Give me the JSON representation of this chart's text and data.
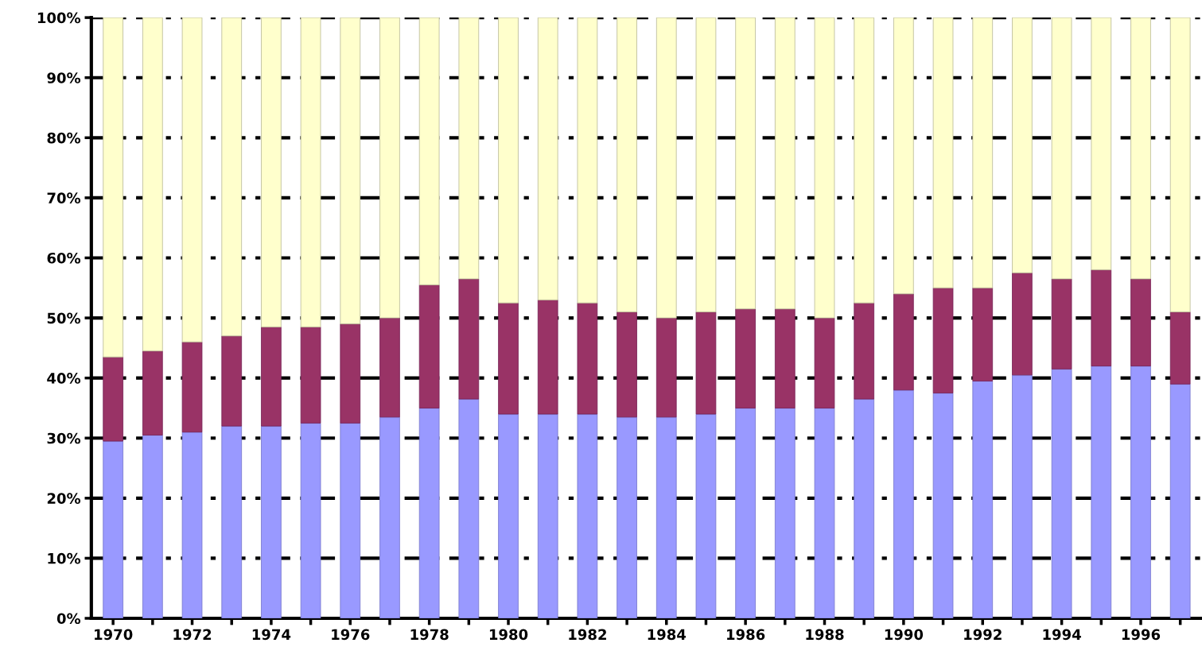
{
  "chart_data": {
    "type": "bar",
    "stacked": true,
    "categories": [
      "1970",
      null,
      "1972",
      null,
      "1974",
      null,
      "1976",
      null,
      "1978",
      null,
      "1980",
      null,
      "1982",
      null,
      "1984",
      null,
      "1986",
      null,
      "1988",
      null,
      "1990",
      null,
      "1992",
      null,
      "1994",
      null,
      "1996",
      null
    ],
    "series": [
      {
        "color": "#9999ff",
        "values": [
          29.5,
          30.5,
          31,
          32,
          32,
          32.5,
          32.5,
          33.5,
          35,
          36.5,
          34,
          34,
          34,
          33.5,
          33.5,
          34,
          35,
          35,
          35,
          36.5,
          38,
          37.5,
          39.5,
          40.5,
          41.5,
          42,
          42,
          39
        ]
      },
      {
        "color": "#993366",
        "values": [
          14,
          14,
          15,
          15,
          16.5,
          16,
          16.5,
          16.5,
          20.5,
          20,
          18.5,
          19,
          18.5,
          17.5,
          16.5,
          17,
          16.5,
          16.5,
          15,
          16,
          16,
          17.5,
          15.5,
          17,
          15,
          16,
          14.5,
          12
        ]
      },
      {
        "color": "#ffffcc",
        "values": [
          56.5,
          55.5,
          54,
          53,
          51.5,
          51.5,
          51,
          50,
          44.5,
          43.5,
          47.5,
          47,
          47.5,
          49,
          50,
          49,
          48.5,
          48.5,
          50,
          47.5,
          46,
          45,
          45,
          42.5,
          43.5,
          42,
          43.5,
          49
        ]
      }
    ],
    "ylim": [
      0,
      100
    ],
    "yticks": [
      {
        "value": 0,
        "label": "0%"
      },
      {
        "value": 10,
        "label": "10%"
      },
      {
        "value": 20,
        "label": "20%"
      },
      {
        "value": 30,
        "label": "30%"
      },
      {
        "value": 40,
        "label": "40%"
      },
      {
        "value": 50,
        "label": "50%"
      },
      {
        "value": 60,
        "label": "60%"
      },
      {
        "value": 70,
        "label": "70%"
      },
      {
        "value": 80,
        "label": "80%"
      },
      {
        "value": 90,
        "label": "90%"
      },
      {
        "value": 100,
        "label": "100%"
      }
    ],
    "grid": "y",
    "legend": false
  }
}
